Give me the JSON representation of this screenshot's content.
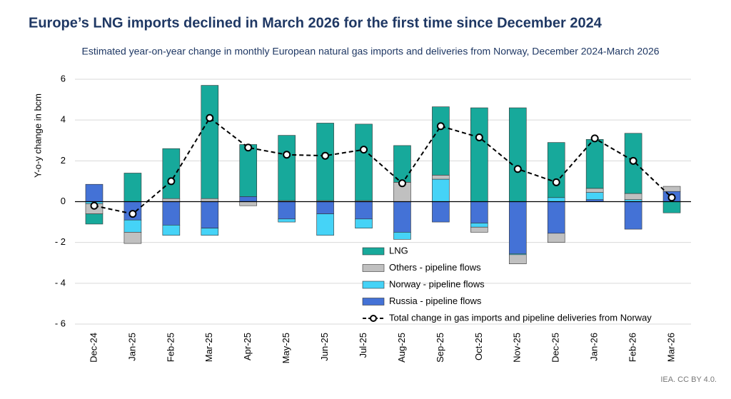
{
  "chart_data": {
    "type": "stacked-bar-line",
    "title": "Europe’s LNG imports declined in March 2026 for the first time since December 2024",
    "subtitle": "Estimated year-on-year change in monthly European natural gas imports and deliveries from Norway, December 2024-March 2026",
    "y_label": "Y-o-y change in bcm",
    "source": "IEA. CC BY 4.0.",
    "categories": [
      "Dec-24",
      "Jan-25",
      "Feb-25",
      "Mar-25",
      "Apr-25",
      "May-25",
      "Jun-25",
      "Jul-25",
      "Aug-25",
      "Sep-25",
      "Oct-25",
      "Nov-25",
      "Dec-25",
      "Jan-26",
      "Feb-26",
      "Mar-26"
    ],
    "series": [
      {
        "name": "Russia - pipeline flows",
        "color": "#4472d6",
        "values": [
          0.85,
          -0.9,
          -1.15,
          -1.3,
          0.25,
          -0.85,
          -0.6,
          -0.85,
          -1.5,
          -1.0,
          -1.05,
          -2.55,
          -1.55,
          0.1,
          -1.35,
          0.5
        ]
      },
      {
        "name": "Norway - pipeline flows",
        "color": "#45d3f7",
        "values": [
          -0.1,
          -0.6,
          -0.5,
          -0.35,
          0,
          -0.15,
          -1.05,
          -0.45,
          -0.35,
          1.1,
          -0.2,
          -0.05,
          0.2,
          0.35,
          0.1,
          0
        ]
      },
      {
        "name": "Others - pipeline flows",
        "color": "#c0c0c0",
        "values": [
          -0.5,
          -0.55,
          0.15,
          0.15,
          -0.2,
          0.05,
          0.05,
          0.05,
          0.95,
          0.2,
          -0.25,
          -0.45,
          -0.45,
          0.2,
          0.3,
          0.25
        ]
      },
      {
        "name": "LNG",
        "color": "#17a99b",
        "values": [
          -0.5,
          1.4,
          2.45,
          5.55,
          2.55,
          3.2,
          3.8,
          3.75,
          1.8,
          3.35,
          4.6,
          4.6,
          2.7,
          2.4,
          2.95,
          -0.55
        ]
      }
    ],
    "line": {
      "name": "Total change in gas imports and pipeline deliveries from Norway",
      "color": "#000000",
      "values": [
        -0.2,
        -0.6,
        1.0,
        4.1,
        2.65,
        2.3,
        2.25,
        2.55,
        0.9,
        3.7,
        3.15,
        1.6,
        0.95,
        3.1,
        2.0,
        0.2
      ]
    },
    "ylim": [
      -6,
      6
    ],
    "yticks": [
      {
        "value": -6,
        "label": "- 6"
      },
      {
        "value": -4,
        "label": "- 4"
      },
      {
        "value": -2,
        "label": "- 2"
      },
      0,
      2,
      4,
      6
    ],
    "grid": true
  }
}
